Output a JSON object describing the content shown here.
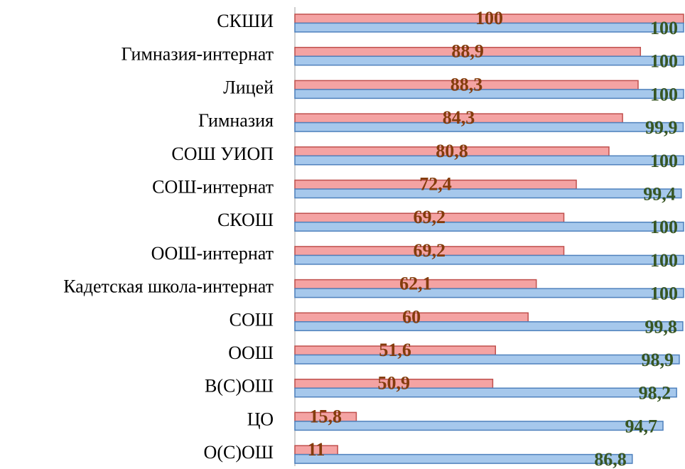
{
  "chart_data": {
    "type": "bar",
    "orientation": "horizontal",
    "categories": [
      "СКШИ",
      "Гимназия-интернат",
      "Лицей",
      "Гимназия",
      "СОШ УИОП",
      "СОШ-интернат",
      "СКОШ",
      "ООШ-интернат",
      "Кадетская школа-интернат",
      "СОШ",
      "ООШ",
      "В(С)ОШ",
      "ЦО",
      "О(С)ОШ"
    ],
    "xlim": [
      0,
      100
    ],
    "series": [
      {
        "color": "#f4a3a3",
        "stroke": "#c0504d",
        "label_color": "#843c0c",
        "values": [
          100,
          88.9,
          88.3,
          84.3,
          80.8,
          72.4,
          69.2,
          69.2,
          62.1,
          60,
          51.6,
          50.9,
          15.8,
          11
        ],
        "value_labels": [
          "100",
          "88,9",
          "88,3",
          "84,3",
          "80,8",
          "72,4",
          "69,2",
          "69,2",
          "62,1",
          "60",
          "51,6",
          "50,9",
          "15,8",
          "11"
        ]
      },
      {
        "color": "#a6c8ec",
        "stroke": "#4f81bd",
        "label_color": "#375623",
        "values": [
          100,
          100,
          100,
          99.9,
          100,
          99.4,
          100,
          100,
          100,
          99.8,
          98.9,
          98.2,
          94.7,
          86.8
        ],
        "value_labels": [
          "100",
          "100",
          "100",
          "99,9",
          "100",
          "99,4",
          "100",
          "100",
          "100",
          "99,8",
          "98,9",
          "98,2",
          "94,7",
          "86,8"
        ]
      }
    ]
  }
}
